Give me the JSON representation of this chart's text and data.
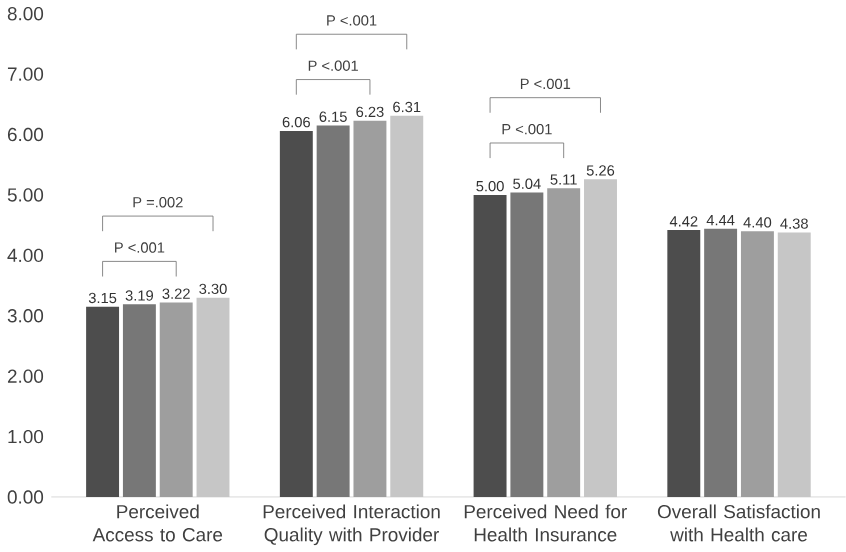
{
  "chart_data": {
    "type": "bar",
    "categories": [
      "Perceived Access to Care",
      "Perceived Interaction Quality with Provider",
      "Perceived Need for Health Insurance",
      "Overall Satisfaction with Health care"
    ],
    "series": [
      {
        "color": "#4d4d4d",
        "values": [
          3.15,
          6.06,
          5.0,
          4.42
        ],
        "value_labels": [
          "3.15",
          "6.06",
          "5.00",
          "4.42"
        ]
      },
      {
        "color": "#777777",
        "values": [
          3.19,
          6.15,
          5.04,
          4.44
        ],
        "value_labels": [
          "3.19",
          "6.15",
          "5.04",
          "4.44"
        ]
      },
      {
        "color": "#9e9e9e",
        "values": [
          3.22,
          6.23,
          5.11,
          4.4
        ],
        "value_labels": [
          "3.22",
          "6.23",
          "5.11",
          "4.40"
        ]
      },
      {
        "color": "#c6c6c6",
        "values": [
          3.3,
          6.31,
          5.26,
          4.38
        ],
        "value_labels": [
          "3.30",
          "6.31",
          "5.26",
          "4.38"
        ]
      }
    ],
    "ylim": [
      0,
      8
    ],
    "yticks": [
      {
        "value": 0,
        "label": "0.00"
      },
      {
        "value": 1,
        "label": "1.00"
      },
      {
        "value": 2,
        "label": "2.00"
      },
      {
        "value": 3,
        "label": "3.00"
      },
      {
        "value": 4,
        "label": "4.00"
      },
      {
        "value": 5,
        "label": "5.00"
      },
      {
        "value": 6,
        "label": "6.00"
      },
      {
        "value": 7,
        "label": "7.00"
      },
      {
        "value": 8,
        "label": "8.00"
      }
    ],
    "grid": false,
    "annotations": [
      "P =.002",
      "P <.001",
      "P <.001",
      "P <.001",
      "P <.001",
      "P <.001"
    ]
  }
}
